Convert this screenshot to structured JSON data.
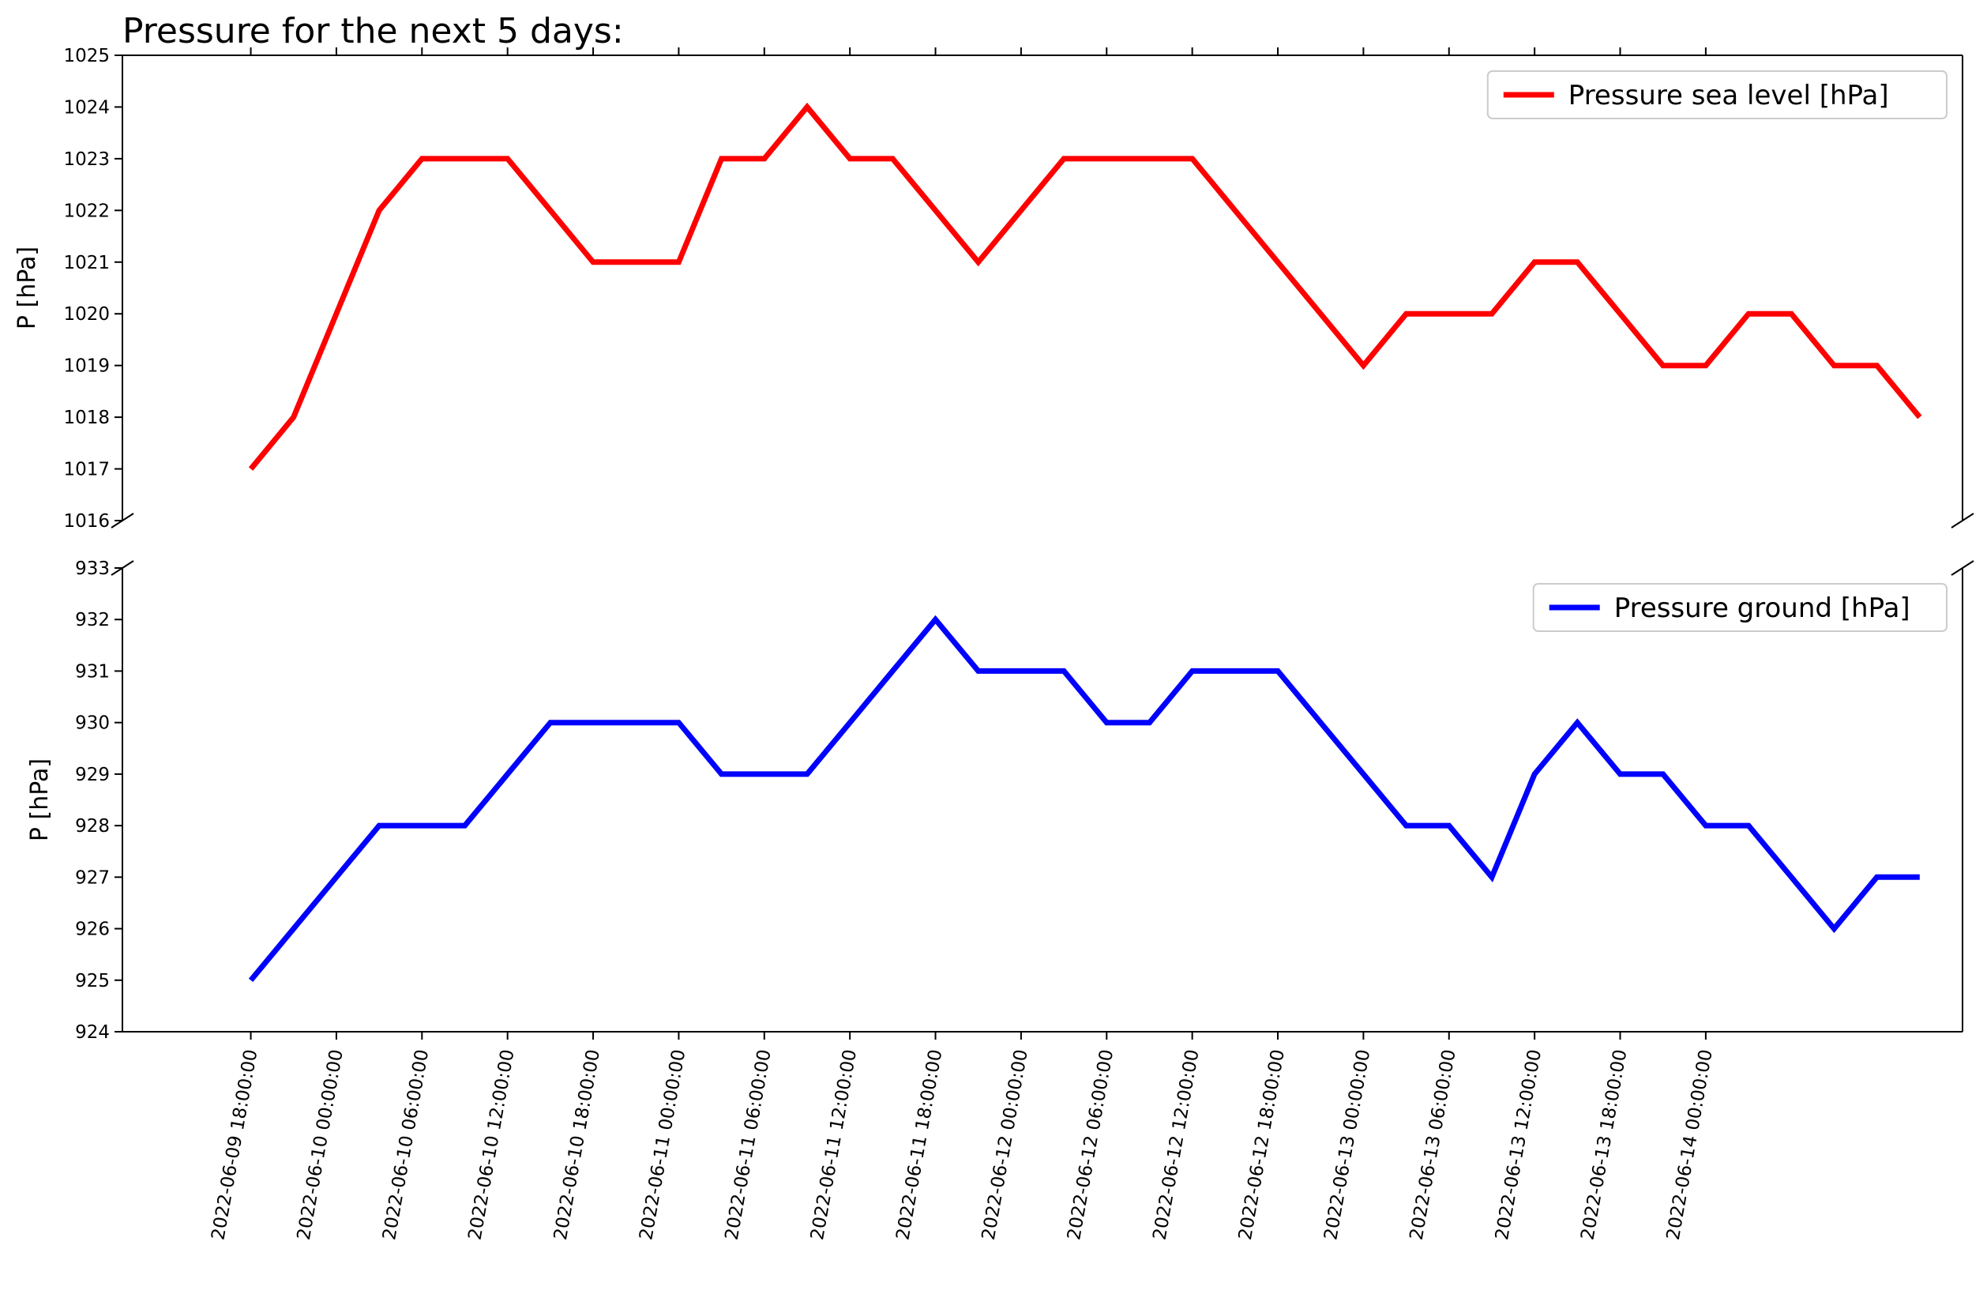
{
  "chart_data": {
    "type": "line",
    "title": "Pressure for the next 5 days:",
    "x": [
      "2022-06-09 18:00:00",
      "2022-06-09 21:00:00",
      "2022-06-10 00:00:00",
      "2022-06-10 03:00:00",
      "2022-06-10 06:00:00",
      "2022-06-10 09:00:00",
      "2022-06-10 12:00:00",
      "2022-06-10 15:00:00",
      "2022-06-10 18:00:00",
      "2022-06-10 21:00:00",
      "2022-06-11 00:00:00",
      "2022-06-11 03:00:00",
      "2022-06-11 06:00:00",
      "2022-06-11 09:00:00",
      "2022-06-11 12:00:00",
      "2022-06-11 15:00:00",
      "2022-06-11 18:00:00",
      "2022-06-11 21:00:00",
      "2022-06-12 00:00:00",
      "2022-06-12 03:00:00",
      "2022-06-12 06:00:00",
      "2022-06-12 09:00:00",
      "2022-06-12 12:00:00",
      "2022-06-12 15:00:00",
      "2022-06-12 18:00:00",
      "2022-06-12 21:00:00",
      "2022-06-13 00:00:00",
      "2022-06-13 03:00:00",
      "2022-06-13 06:00:00",
      "2022-06-13 09:00:00",
      "2022-06-13 12:00:00",
      "2022-06-13 15:00:00",
      "2022-06-13 18:00:00",
      "2022-06-13 21:00:00",
      "2022-06-14 00:00:00",
      "2022-06-14 03:00:00",
      "2022-06-14 06:00:00",
      "2022-06-14 09:00:00",
      "2022-06-14 12:00:00",
      "2022-06-14 15:00:00"
    ],
    "xticks": [
      "2022-06-09 18:00:00",
      "2022-06-10 00:00:00",
      "2022-06-10 06:00:00",
      "2022-06-10 12:00:00",
      "2022-06-10 18:00:00",
      "2022-06-11 00:00:00",
      "2022-06-11 06:00:00",
      "2022-06-11 12:00:00",
      "2022-06-11 18:00:00",
      "2022-06-12 00:00:00",
      "2022-06-12 06:00:00",
      "2022-06-12 12:00:00",
      "2022-06-12 18:00:00",
      "2022-06-13 00:00:00",
      "2022-06-13 06:00:00",
      "2022-06-13 12:00:00",
      "2022-06-13 18:00:00",
      "2022-06-14 00:00:00"
    ],
    "xlim": [
      "2022-06-09 09:00:00",
      "2022-06-14 18:00:00"
    ],
    "panels": [
      {
        "ylabel": "P [hPa]",
        "ylim": [
          1016,
          1025
        ],
        "yticks": [
          1016,
          1017,
          1018,
          1019,
          1020,
          1021,
          1022,
          1023,
          1024,
          1025
        ],
        "legend_position": "top-right",
        "series": [
          {
            "name": "Pressure sea level [hPa]",
            "color": "#ff0000",
            "values": [
              1017,
              1018,
              1020,
              1022,
              1023,
              1023,
              1023,
              1022,
              1021,
              1021,
              1021,
              1023,
              1023,
              1024,
              1023,
              1023,
              1022,
              1021,
              1022,
              1023,
              1023,
              1023,
              1023,
              1022,
              1021,
              1020,
              1019,
              1020,
              1020,
              1020,
              1021,
              1021,
              1020,
              1019,
              1019,
              1020,
              1020,
              1019,
              1019,
              1018
            ]
          }
        ]
      },
      {
        "ylabel": "P [hPa]",
        "ylim": [
          924,
          933
        ],
        "yticks": [
          924,
          925,
          926,
          927,
          928,
          929,
          930,
          931,
          932,
          933
        ],
        "legend_position": "top-right",
        "series": [
          {
            "name": "Pressure ground [hPa]",
            "color": "#0000ff",
            "values": [
              925,
              926,
              927,
              928,
              928,
              928,
              929,
              930,
              930,
              930,
              930,
              929,
              929,
              929,
              930,
              931,
              932,
              931,
              931,
              931,
              930,
              930,
              931,
              931,
              931,
              930,
              929,
              928,
              928,
              927,
              929,
              930,
              929,
              929,
              928,
              928,
              927,
              926,
              927,
              927
            ]
          }
        ]
      }
    ]
  }
}
